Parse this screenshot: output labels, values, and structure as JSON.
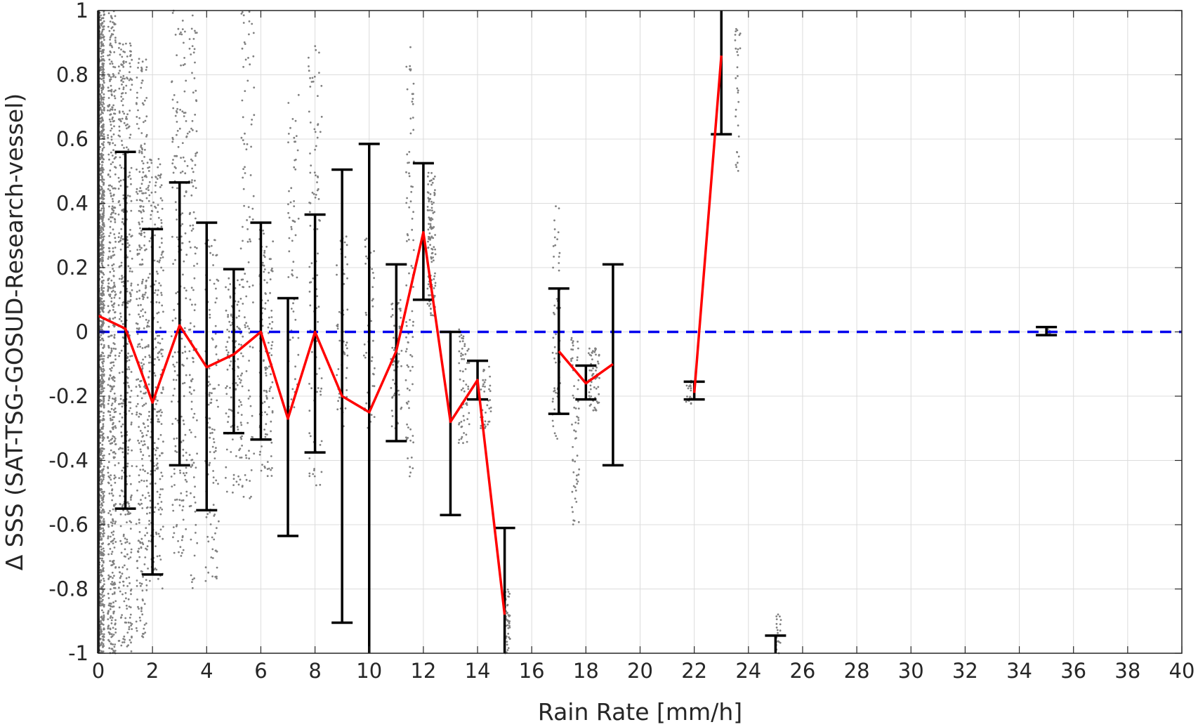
{
  "chart_data": {
    "type": "scatter",
    "title": "",
    "xlabel": "Rain Rate [mm/h]",
    "ylabel": "Δ SSS (SAT-TSG-GOSUD-Research-vessel)",
    "xlim": [
      0,
      40
    ],
    "ylim": [
      -1,
      1
    ],
    "grid": true,
    "legend": "none",
    "xticks": [
      0,
      2,
      4,
      6,
      8,
      10,
      12,
      14,
      16,
      18,
      20,
      22,
      24,
      26,
      28,
      30,
      32,
      34,
      36,
      38,
      40
    ],
    "yticks": [
      -1,
      -0.8,
      -0.6,
      -0.4,
      -0.2,
      0,
      0.2,
      0.4,
      0.6,
      0.8,
      1
    ],
    "ytick_labels": [
      "-1",
      "-0.8",
      "-0.6",
      "-0.4",
      "-0.2",
      "0",
      "0.2",
      "0.4",
      "0.6",
      "0.8",
      "1"
    ],
    "zero_line": {
      "y": 0,
      "color": "#0000ee",
      "style": "dashed"
    },
    "mean_line_color": "#ff0000",
    "errorbar_color": "#000000",
    "scatter_color": "#808080",
    "mean_segments": [
      [
        [
          0,
          0.05
        ],
        [
          1,
          0.01
        ],
        [
          2,
          -0.22
        ],
        [
          3,
          0.02
        ],
        [
          4,
          -0.11
        ],
        [
          5,
          -0.07
        ],
        [
          6,
          0.0
        ],
        [
          7,
          -0.27
        ],
        [
          8,
          -0.0
        ],
        [
          9,
          -0.2
        ],
        [
          10,
          -0.25
        ],
        [
          11,
          -0.06
        ],
        [
          12,
          0.31
        ],
        [
          13,
          -0.28
        ],
        [
          14,
          -0.15
        ],
        [
          15,
          -0.88
        ]
      ],
      [
        [
          17,
          -0.06
        ],
        [
          18,
          -0.16
        ],
        [
          19,
          -0.1
        ]
      ],
      [
        [
          22,
          -0.19
        ],
        [
          23,
          0.86
        ]
      ]
    ],
    "error_bars": [
      {
        "x": 0,
        "low": -1.0,
        "high": 1.0
      },
      {
        "x": 1,
        "low": -0.55,
        "high": 0.56
      },
      {
        "x": 2,
        "low": -0.755,
        "high": 0.32
      },
      {
        "x": 3,
        "low": -0.415,
        "high": 0.465
      },
      {
        "x": 4,
        "low": -0.555,
        "high": 0.34
      },
      {
        "x": 5,
        "low": -0.315,
        "high": 0.195
      },
      {
        "x": 6,
        "low": -0.335,
        "high": 0.34
      },
      {
        "x": 7,
        "low": -0.635,
        "high": 0.105
      },
      {
        "x": 8,
        "low": -0.375,
        "high": 0.365
      },
      {
        "x": 9,
        "low": -0.905,
        "high": 0.505
      },
      {
        "x": 10,
        "low": -1.0,
        "high": 0.585
      },
      {
        "x": 11,
        "low": -0.34,
        "high": 0.21
      },
      {
        "x": 12,
        "low": 0.1,
        "high": 0.525
      },
      {
        "x": 13,
        "low": -0.57,
        "high": 0.0
      },
      {
        "x": 14,
        "low": -0.21,
        "high": -0.09
      },
      {
        "x": 15,
        "low": -1.0,
        "high": -0.61
      },
      {
        "x": 17,
        "low": -0.255,
        "high": 0.135
      },
      {
        "x": 18,
        "low": -0.21,
        "high": -0.105
      },
      {
        "x": 19,
        "low": -0.415,
        "high": 0.21
      },
      {
        "x": 22,
        "low": -0.21,
        "high": -0.155
      },
      {
        "x": 23,
        "low": 0.615,
        "high": 1.0
      },
      {
        "x": 25,
        "low": -1.0,
        "high": -0.945
      },
      {
        "x": 35,
        "low": -0.01,
        "high": 0.015
      }
    ],
    "scatter_clusters": [
      {
        "x": 0.1,
        "spread": 0.12,
        "low": -1.0,
        "high": 1.0,
        "n": 1200
      },
      {
        "x": 0.5,
        "spread": 0.15,
        "low": -1.0,
        "high": 1.0,
        "n": 500
      },
      {
        "x": 1.0,
        "spread": 0.25,
        "low": -1.0,
        "high": 0.9,
        "n": 450
      },
      {
        "x": 1.6,
        "spread": 0.2,
        "low": -0.95,
        "high": 0.85,
        "n": 300
      },
      {
        "x": 2.1,
        "spread": 0.3,
        "low": -0.8,
        "high": 0.55,
        "n": 280
      },
      {
        "x": 3.0,
        "spread": 0.3,
        "low": -0.7,
        "high": 1.0,
        "n": 200
      },
      {
        "x": 3.5,
        "spread": 0.15,
        "low": -0.8,
        "high": 1.0,
        "n": 120
      },
      {
        "x": 4.2,
        "spread": 0.25,
        "low": -0.78,
        "high": 0.3,
        "n": 120
      },
      {
        "x": 5.0,
        "spread": 0.3,
        "low": -0.5,
        "high": 0.2,
        "n": 120
      },
      {
        "x": 5.5,
        "spread": 0.25,
        "low": -0.55,
        "high": 1.0,
        "n": 110
      },
      {
        "x": 6.2,
        "spread": 0.25,
        "low": -0.45,
        "high": 0.32,
        "n": 130
      },
      {
        "x": 7.2,
        "spread": 0.2,
        "low": -0.25,
        "high": 0.75,
        "n": 60
      },
      {
        "x": 8.0,
        "spread": 0.25,
        "low": -0.48,
        "high": 0.9,
        "n": 100
      },
      {
        "x": 9.0,
        "spread": 0.2,
        "low": -0.3,
        "high": 0.3,
        "n": 60
      },
      {
        "x": 10.0,
        "spread": 0.2,
        "low": -0.3,
        "high": 0.3,
        "n": 50
      },
      {
        "x": 11.0,
        "spread": 0.2,
        "low": -0.3,
        "high": 0.1,
        "n": 60
      },
      {
        "x": 11.5,
        "spread": 0.15,
        "low": -0.45,
        "high": 0.9,
        "n": 90
      },
      {
        "x": 12.3,
        "spread": 0.15,
        "low": 0.05,
        "high": 0.5,
        "n": 120
      },
      {
        "x": 13.5,
        "spread": 0.2,
        "low": -0.35,
        "high": 0.02,
        "n": 60
      },
      {
        "x": 14.3,
        "spread": 0.2,
        "low": -0.3,
        "high": -0.1,
        "n": 40
      },
      {
        "x": 15.1,
        "spread": 0.1,
        "low": -1.0,
        "high": -0.8,
        "n": 50
      },
      {
        "x": 16.9,
        "spread": 0.15,
        "low": -0.35,
        "high": 0.4,
        "n": 60
      },
      {
        "x": 17.6,
        "spread": 0.15,
        "low": -0.6,
        "high": 0.0,
        "n": 60
      },
      {
        "x": 18.3,
        "spread": 0.2,
        "low": -0.25,
        "high": -0.05,
        "n": 60
      },
      {
        "x": 21.8,
        "spread": 0.1,
        "low": -0.23,
        "high": -0.15,
        "n": 20
      },
      {
        "x": 23.6,
        "spread": 0.1,
        "low": 0.47,
        "high": 0.95,
        "n": 30
      },
      {
        "x": 25.1,
        "spread": 0.1,
        "low": -1.0,
        "high": -0.87,
        "n": 20
      },
      {
        "x": 35.1,
        "spread": 0.05,
        "low": -0.01,
        "high": 0.01,
        "n": 10
      }
    ]
  }
}
